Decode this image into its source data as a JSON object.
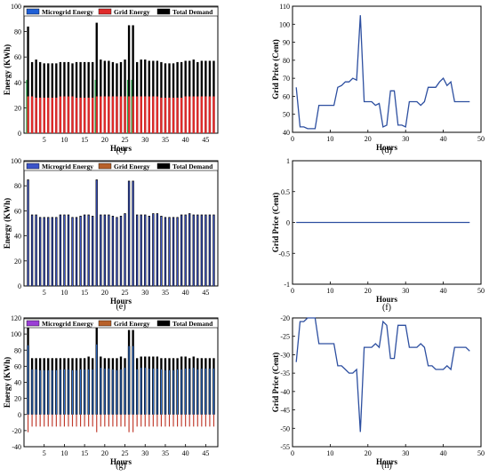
{
  "chart_data": [
    {
      "type": "bar",
      "panel_label": "(c)",
      "xlabel": "Hours",
      "ylabel": "Energy (KWh)",
      "xlim": [
        0,
        48
      ],
      "ylim": [
        0,
        100
      ],
      "xticks": [
        5,
        10,
        15,
        20,
        25,
        30,
        35,
        40,
        45
      ],
      "yticks": [
        0,
        20,
        40,
        60,
        80,
        100
      ],
      "legend_position": "top",
      "x": [
        1,
        2,
        3,
        4,
        5,
        6,
        7,
        8,
        9,
        10,
        11,
        12,
        13,
        14,
        15,
        16,
        17,
        18,
        19,
        20,
        21,
        22,
        23,
        24,
        25,
        26,
        27,
        28,
        29,
        30,
        31,
        32,
        33,
        34,
        35,
        36,
        37,
        38,
        39,
        40,
        41,
        42,
        43,
        44,
        45,
        46,
        47
      ],
      "series": [
        {
          "name": "Microgrid Energy",
          "color": "#1f5fd6",
          "values": [
            42,
            0,
            0,
            0,
            0,
            0,
            0,
            0,
            0,
            0,
            0,
            0,
            0,
            0,
            0,
            0,
            0,
            42,
            0,
            0,
            0,
            0,
            0,
            0,
            0,
            42,
            42,
            0,
            0,
            0,
            0,
            0,
            0,
            0,
            0,
            0,
            0,
            0,
            0,
            0,
            0,
            0,
            0,
            0,
            0,
            0,
            0
          ]
        },
        {
          "name": "Grid Energy",
          "color": "#e02a2a",
          "values": [
            29,
            29,
            28,
            28,
            28,
            28,
            28,
            28,
            29,
            29,
            29,
            29,
            28,
            28,
            28,
            28,
            28,
            29,
            29,
            29,
            29,
            29,
            29,
            29,
            29,
            29,
            29,
            29,
            29,
            29,
            29,
            29,
            29,
            28,
            28,
            28,
            28,
            28,
            28,
            29,
            29,
            29,
            29,
            29,
            29,
            29,
            29
          ]
        },
        {
          "name": "Total Demand",
          "color": "#000000",
          "values": [
            84,
            56,
            58,
            56,
            55,
            55,
            55,
            55,
            56,
            56,
            56,
            55,
            56,
            56,
            56,
            56,
            56,
            87,
            58,
            57,
            57,
            56,
            55,
            56,
            58,
            85,
            85,
            56,
            58,
            58,
            57,
            57,
            57,
            56,
            55,
            55,
            55,
            56,
            56,
            57,
            57,
            58,
            56,
            57,
            57,
            57,
            57
          ]
        }
      ]
    },
    {
      "type": "line",
      "panel_label": "(d)",
      "xlabel": "Hours",
      "ylabel": "Grid Price (Cent)",
      "xlim": [
        0,
        50
      ],
      "ylim": [
        40,
        110
      ],
      "xticks": [
        0,
        10,
        20,
        30,
        40,
        50
      ],
      "yticks": [
        40,
        50,
        60,
        70,
        80,
        90,
        100,
        110
      ],
      "series": [
        {
          "color": "#2d4fa0",
          "x": [
            1,
            2,
            3,
            4,
            5,
            6,
            7,
            8,
            9,
            10,
            11,
            12,
            13,
            14,
            15,
            16,
            17,
            18,
            19,
            20,
            21,
            22,
            23,
            24,
            25,
            26,
            27,
            28,
            29,
            30,
            31,
            32,
            33,
            34,
            35,
            36,
            37,
            38,
            39,
            40,
            41,
            42,
            43,
            44,
            45,
            46,
            47
          ],
          "values": [
            65,
            43,
            43,
            42,
            42,
            42,
            55,
            55,
            55,
            55,
            55,
            65,
            66,
            68,
            68,
            70,
            69,
            105,
            57,
            57,
            57,
            55,
            56,
            43,
            44,
            63,
            63,
            44,
            44,
            43,
            57,
            57,
            57,
            55,
            57,
            65,
            65,
            65,
            68,
            70,
            66,
            68,
            57,
            57,
            57,
            57,
            57
          ]
        }
      ]
    },
    {
      "type": "bar",
      "panel_label": "(e)",
      "xlabel": "Hours",
      "ylabel": "Energy (KWh)",
      "xlim": [
        0,
        48
      ],
      "ylim": [
        0,
        100
      ],
      "xticks": [
        5,
        10,
        15,
        20,
        25,
        30,
        35,
        40,
        45
      ],
      "yticks": [
        0,
        20,
        40,
        60,
        80,
        100
      ],
      "legend_position": "top",
      "x": [
        1,
        2,
        3,
        4,
        5,
        6,
        7,
        8,
        9,
        10,
        11,
        12,
        13,
        14,
        15,
        16,
        17,
        18,
        19,
        20,
        21,
        22,
        23,
        24,
        25,
        26,
        27,
        28,
        29,
        30,
        31,
        32,
        33,
        34,
        35,
        36,
        37,
        38,
        39,
        40,
        41,
        42,
        43,
        44,
        45,
        46,
        47
      ],
      "series": [
        {
          "name": "Microgrid Energy",
          "color": "#3b54c9",
          "values": [
            85,
            57,
            57,
            55,
            55,
            55,
            55,
            55,
            57,
            57,
            57,
            55,
            55,
            56,
            57,
            57,
            56,
            85,
            57,
            57,
            57,
            56,
            55,
            56,
            58,
            84,
            84,
            57,
            57,
            57,
            56,
            58,
            58,
            56,
            55,
            55,
            55,
            55,
            57,
            57,
            58,
            57,
            57,
            57,
            57,
            57,
            57
          ]
        },
        {
          "name": "Grid Energy",
          "color": "#b8612a",
          "values": [
            0,
            0,
            0,
            0,
            0,
            0,
            0,
            0,
            0,
            0,
            0,
            0,
            0,
            0,
            0,
            0,
            0,
            0,
            0,
            0,
            0,
            0,
            0,
            0,
            0,
            0,
            0,
            0,
            0,
            0,
            0,
            0,
            0,
            0,
            0,
            0,
            0,
            0,
            0,
            0,
            0,
            0,
            0,
            0,
            0,
            0,
            0
          ]
        },
        {
          "name": "Total Demand",
          "color": "#000000",
          "values": [
            85,
            57,
            57,
            55,
            55,
            55,
            55,
            55,
            57,
            57,
            57,
            55,
            55,
            56,
            57,
            57,
            56,
            85,
            57,
            57,
            57,
            56,
            55,
            56,
            58,
            84,
            84,
            57,
            57,
            57,
            56,
            58,
            58,
            56,
            55,
            55,
            55,
            55,
            57,
            57,
            58,
            57,
            57,
            57,
            57,
            57,
            57
          ]
        }
      ]
    },
    {
      "type": "line",
      "panel_label": "(f)",
      "xlabel": "Hours",
      "ylabel": "Grid Price (Cent)",
      "xlim": [
        0,
        50
      ],
      "ylim": [
        -1,
        1
      ],
      "xticks": [
        0,
        10,
        20,
        30,
        40,
        50
      ],
      "yticks": [
        -1,
        -0.5,
        0,
        0.5,
        1
      ],
      "series": [
        {
          "color": "#2d4fa0",
          "x": [
            1,
            47
          ],
          "values": [
            0,
            0
          ]
        }
      ]
    },
    {
      "type": "bar",
      "panel_label": "(g)",
      "xlabel": "Hours",
      "ylabel": "Energy (KWh)",
      "xlim": [
        0,
        48
      ],
      "ylim": [
        -40,
        120
      ],
      "xticks": [
        5,
        10,
        15,
        20,
        25,
        30,
        35,
        40,
        45
      ],
      "yticks": [
        -40,
        -20,
        0,
        20,
        40,
        60,
        80,
        100,
        120
      ],
      "legend_position": "top",
      "x": [
        1,
        2,
        3,
        4,
        5,
        6,
        7,
        8,
        9,
        10,
        11,
        12,
        13,
        14,
        15,
        16,
        17,
        18,
        19,
        20,
        21,
        22,
        23,
        24,
        25,
        26,
        27,
        28,
        29,
        30,
        31,
        32,
        33,
        34,
        35,
        36,
        37,
        38,
        39,
        40,
        41,
        42,
        43,
        44,
        45,
        46,
        47
      ],
      "series": [
        {
          "name": "Microgrid Energy",
          "color": "#2f6fcf",
          "values": [
            108,
            70,
            70,
            70,
            70,
            70,
            70,
            70,
            70,
            70,
            70,
            70,
            70,
            70,
            70,
            72,
            70,
            108,
            72,
            70,
            70,
            70,
            70,
            72,
            70,
            105,
            105,
            70,
            72,
            72,
            72,
            72,
            72,
            70,
            70,
            70,
            70,
            70,
            72,
            72,
            70,
            72,
            70,
            70,
            70,
            70,
            70
          ]
        },
        {
          "name": "Grid Energy",
          "color": "#b8612a",
          "values": [
            -22,
            -15,
            -15,
            -15,
            -15,
            -15,
            -15,
            -15,
            -15,
            -15,
            -15,
            -15,
            -15,
            -15,
            -15,
            -15,
            -15,
            -22,
            -15,
            -15,
            -15,
            -15,
            -15,
            -15,
            -15,
            -22,
            -22,
            -15,
            -15,
            -15,
            -15,
            -15,
            -15,
            -15,
            -15,
            -15,
            -15,
            -15,
            -15,
            -15,
            -15,
            -15,
            -15,
            -15,
            -15,
            -15,
            -15
          ]
        },
        {
          "name": "Total Demand",
          "color": "#000000",
          "values": [
            86,
            56,
            56,
            55,
            55,
            55,
            55,
            55,
            56,
            56,
            56,
            55,
            55,
            56,
            56,
            56,
            56,
            87,
            58,
            57,
            57,
            56,
            55,
            56,
            58,
            85,
            85,
            56,
            58,
            58,
            57,
            57,
            57,
            56,
            55,
            55,
            55,
            56,
            56,
            57,
            57,
            58,
            56,
            57,
            57,
            57,
            57
          ]
        }
      ]
    },
    {
      "type": "line",
      "panel_label": "(h)",
      "xlabel": "Hours",
      "ylabel": "Grid Price (Cent)",
      "xlim": [
        0,
        50
      ],
      "ylim": [
        -55,
        -20
      ],
      "xticks": [
        0,
        10,
        20,
        30,
        40,
        50
      ],
      "yticks": [
        -55,
        -50,
        -45,
        -40,
        -35,
        -30,
        -25,
        -20
      ],
      "series": [
        {
          "color": "#2d4fa0",
          "x": [
            1,
            2,
            3,
            4,
            5,
            6,
            7,
            8,
            9,
            10,
            11,
            12,
            13,
            14,
            15,
            16,
            17,
            18,
            19,
            20,
            21,
            22,
            23,
            24,
            25,
            26,
            27,
            28,
            29,
            30,
            31,
            32,
            33,
            34,
            35,
            36,
            37,
            38,
            39,
            40,
            41,
            42,
            43,
            44,
            45,
            46,
            47
          ],
          "values": [
            -32,
            -21,
            -21,
            -20,
            -20,
            -20,
            -27,
            -27,
            -27,
            -27,
            -27,
            -33,
            -33,
            -34,
            -35,
            -35,
            -34,
            -51,
            -28,
            -28,
            -28,
            -27,
            -28,
            -21,
            -22,
            -31,
            -31,
            -22,
            -22,
            -22,
            -28,
            -28,
            -28,
            -27,
            -28,
            -33,
            -33,
            -34,
            -34,
            -34,
            -33,
            -34,
            -28,
            -28,
            -28,
            -28,
            -29
          ]
        }
      ]
    }
  ]
}
